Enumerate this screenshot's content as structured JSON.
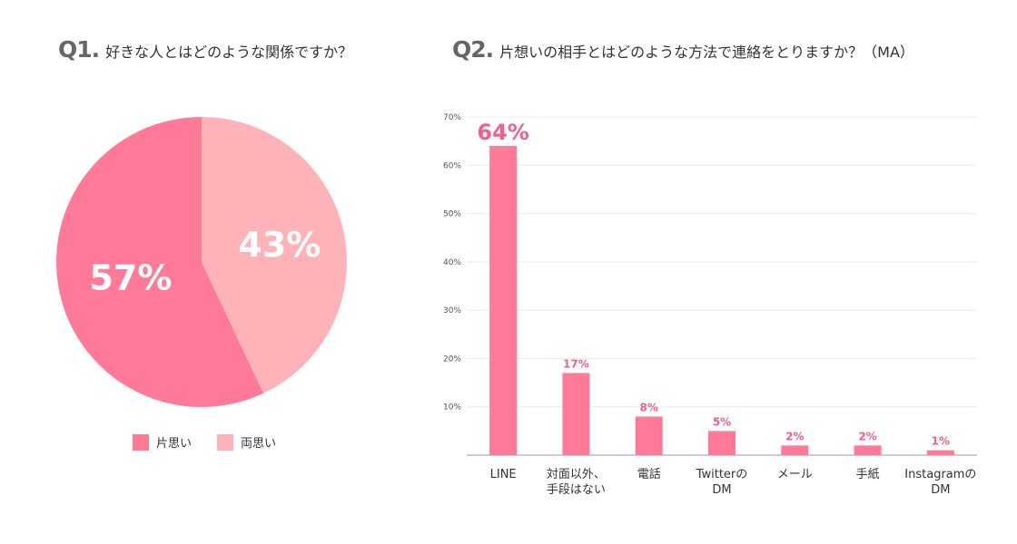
{
  "colors": {
    "primary": "#ff7a99",
    "light": "#ffb3b9",
    "accent_text": "#f25f8a",
    "grid": "#ececec",
    "axis": "#999999"
  },
  "q1": {
    "num": "Q1",
    "text": "好きな人とはどのような関係ですか？",
    "chart_data": {
      "type": "pie",
      "slices": [
        {
          "name": "片思い",
          "value": 57,
          "label": "57%"
        },
        {
          "name": "両思い",
          "value": 43,
          "label": "43%"
        }
      ],
      "legend": "bottom"
    }
  },
  "q2": {
    "num": "Q2",
    "text": "片想いの相手とはどのような方法で連絡をとりますか？（MA）",
    "chart_data": {
      "type": "bar",
      "categories": [
        "LINE",
        "対面以外、\n手段はない",
        "電話",
        "Twitterの\nDM",
        "メール",
        "手紙",
        "Instagramの\nDM"
      ],
      "values": [
        64,
        17,
        8,
        5,
        2,
        2,
        1
      ],
      "value_labels": [
        "64%",
        "17%",
        "8%",
        "5%",
        "2%",
        "2%",
        "1%"
      ],
      "yticks": [
        "10%",
        "20%",
        "30%",
        "40%",
        "50%",
        "60%",
        "70%"
      ],
      "ytick_values": [
        10,
        20,
        30,
        40,
        50,
        60,
        70
      ],
      "ylim": [
        0,
        70
      ],
      "grid": true
    }
  }
}
